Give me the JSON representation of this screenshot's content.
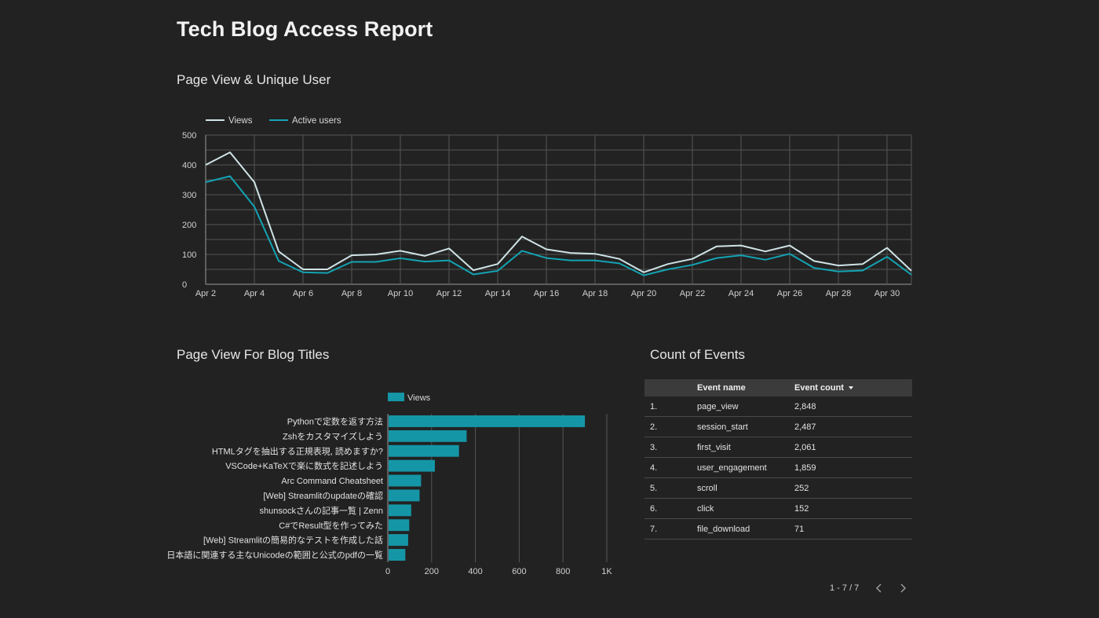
{
  "page": {
    "title": "Tech Blog Access Report"
  },
  "sections": {
    "line_chart_title": "Page View & Unique User",
    "bar_chart_title": "Page View For Blog Titles",
    "table_title": "Count of Events"
  },
  "colors": {
    "views_line": "#cfe3e6",
    "active_users_line": "#13a3b3",
    "bar": "#1596a6",
    "grid": "#555555"
  },
  "chart_data": [
    {
      "type": "line",
      "x": [
        "Apr 2",
        "Apr 3",
        "Apr 4",
        "Apr 5",
        "Apr 6",
        "Apr 7",
        "Apr 8",
        "Apr 9",
        "Apr 10",
        "Apr 11",
        "Apr 12",
        "Apr 13",
        "Apr 14",
        "Apr 15",
        "Apr 16",
        "Apr 17",
        "Apr 18",
        "Apr 19",
        "Apr 20",
        "Apr 21",
        "Apr 22",
        "Apr 23",
        "Apr 24",
        "Apr 25",
        "Apr 26",
        "Apr 27",
        "Apr 28",
        "Apr 29",
        "Apr 30",
        "May 1"
      ],
      "xticks": [
        "Apr 2",
        "Apr 4",
        "Apr 6",
        "Apr 8",
        "Apr 10",
        "Apr 12",
        "Apr 14",
        "Apr 16",
        "Apr 18",
        "Apr 20",
        "Apr 22",
        "Apr 24",
        "Apr 26",
        "Apr 28",
        "Apr 30"
      ],
      "ylim": [
        0,
        500
      ],
      "yticks": [
        0,
        100,
        200,
        300,
        400,
        500
      ],
      "grid": true,
      "legend": "top-left",
      "series": [
        {
          "name": "Views",
          "values": [
            400,
            442,
            342,
            110,
            50,
            50,
            97,
            100,
            112,
            95,
            120,
            47,
            68,
            160,
            117,
            105,
            102,
            85,
            40,
            68,
            85,
            127,
            130,
            110,
            130,
            78,
            63,
            68,
            122,
            45
          ]
        },
        {
          "name": "Active users",
          "values": [
            342,
            362,
            260,
            78,
            40,
            38,
            75,
            75,
            87,
            76,
            80,
            33,
            45,
            112,
            88,
            80,
            80,
            70,
            30,
            50,
            65,
            88,
            97,
            82,
            102,
            55,
            43,
            46,
            92,
            32
          ]
        }
      ]
    },
    {
      "type": "bar",
      "orientation": "horizontal",
      "categories": [
        "Pythonで定数を返す方法",
        "Zshをカスタマイズしよう",
        "HTMLタグを抽出する正規表現, 読めますか?",
        "VSCode+KaTeXで楽に数式を記述しよう",
        "Arc Command Cheatsheet",
        "[Web] Streamlitのupdateの確認",
        "shunsockさんの記事一覧 | Zenn",
        "C#でResult型を作ってみた",
        "[Web] Streamlitの簡易的なテストを作成した話",
        "日本語に関連する主なUnicodeの範囲と公式のpdfの一覧"
      ],
      "series": [
        {
          "name": "Views",
          "values": [
            900,
            360,
            325,
            215,
            152,
            145,
            107,
            98,
            93,
            80
          ]
        }
      ],
      "xlim": [
        0,
        1000
      ],
      "xticks": [
        "0",
        "200",
        "400",
        "600",
        "800",
        "1K"
      ],
      "grid": true,
      "legend": "top"
    }
  ],
  "events_table": {
    "headers": {
      "name": "Event name",
      "count": "Event count"
    },
    "rows": [
      {
        "rank": "1.",
        "name": "page_view",
        "count": "2,848"
      },
      {
        "rank": "2.",
        "name": "session_start",
        "count": "2,487"
      },
      {
        "rank": "3.",
        "name": "first_visit",
        "count": "2,061"
      },
      {
        "rank": "4.",
        "name": "user_engagement",
        "count": "1,859"
      },
      {
        "rank": "5.",
        "name": "scroll",
        "count": "252"
      },
      {
        "rank": "6.",
        "name": "click",
        "count": "152"
      },
      {
        "rank": "7.",
        "name": "file_download",
        "count": "71"
      }
    ],
    "pagination": "1 - 7 / 7"
  }
}
